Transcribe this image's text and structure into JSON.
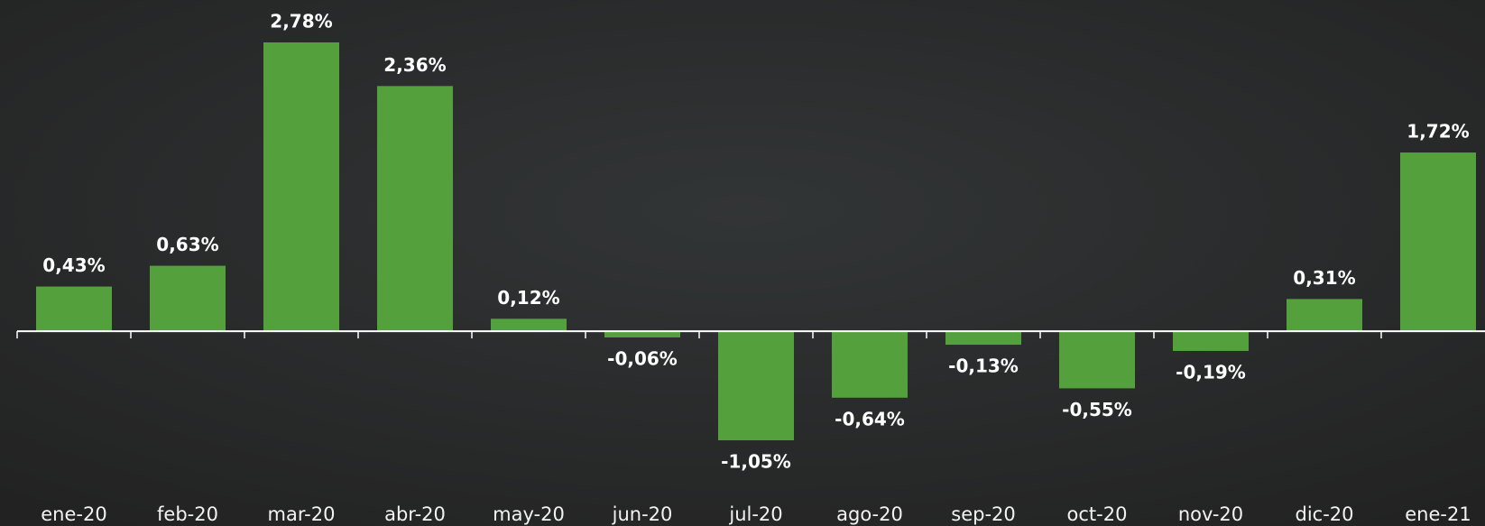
{
  "chart_data": {
    "type": "bar",
    "categories": [
      "ene-20",
      "feb-20",
      "mar-20",
      "abr-20",
      "may-20",
      "jun-20",
      "jul-20",
      "ago-20",
      "sep-20",
      "oct-20",
      "nov-20",
      "dic-20",
      "ene-21"
    ],
    "values": [
      0.43,
      0.63,
      2.78,
      2.36,
      0.12,
      -0.06,
      -1.05,
      -0.64,
      -0.13,
      -0.55,
      -0.19,
      0.31,
      1.72
    ],
    "value_labels": [
      "0,43%",
      "0,63%",
      "2,78%",
      "2,36%",
      "0,12%",
      "-0,06%",
      "-1,05%",
      "-0,64%",
      "-0,13%",
      "-0,55%",
      "-0,19%",
      "0,31%",
      "1,72%"
    ],
    "color": "#54a03c"
  }
}
